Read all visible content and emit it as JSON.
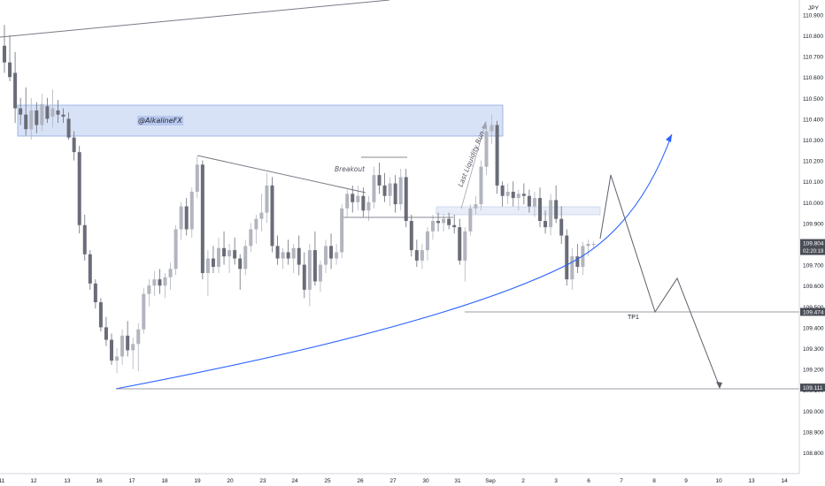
{
  "chart_data": {
    "type": "candlestick",
    "currency": "JPY",
    "y_ticks": [
      "110.900",
      "110.800",
      "110.700",
      "110.600",
      "110.500",
      "110.400",
      "110.300",
      "110.200",
      "110.100",
      "110.000",
      "109.900",
      "109.800",
      "109.700",
      "109.600",
      "109.500",
      "109.400",
      "109.300",
      "109.200",
      "109.100",
      "109.000",
      "108.900",
      "108.800"
    ],
    "x_ticks": [
      "11",
      "12",
      "13",
      "16",
      "17",
      "18",
      "19",
      "20",
      "23",
      "24",
      "25",
      "26",
      "27",
      "30",
      "31",
      "Sep",
      "2",
      "3",
      "6",
      "7",
      "8",
      "9",
      "10",
      "13",
      "14"
    ],
    "ylim": [
      108.75,
      110.95
    ],
    "price_tags": [
      {
        "label": "109.804",
        "sub": "02:20:19",
        "value": 109.804,
        "color": "#4a4d57"
      },
      {
        "label": "109.474",
        "value": 109.474,
        "color": "#4a4d57"
      },
      {
        "label": "109.111",
        "value": 109.111,
        "color": "#4a4d57"
      }
    ],
    "annotations": {
      "watermark": "@AlkalineFX",
      "breakout": "Breakout",
      "liquidity": "Last Liquidity Run",
      "tp1": "TP1"
    },
    "candles": [
      [
        110.75,
        110.85,
        110.62,
        110.67
      ],
      [
        110.67,
        110.8,
        110.58,
        110.6
      ],
      [
        110.62,
        110.72,
        110.38,
        110.45
      ],
      [
        110.45,
        110.5,
        110.37,
        110.42
      ],
      [
        110.42,
        110.55,
        110.32,
        110.35
      ],
      [
        110.35,
        110.5,
        110.3,
        110.44
      ],
      [
        110.44,
        110.48,
        110.33,
        110.37
      ],
      [
        110.37,
        110.52,
        110.34,
        110.47
      ],
      [
        110.46,
        110.5,
        110.38,
        110.4
      ],
      [
        110.41,
        110.54,
        110.36,
        110.45
      ],
      [
        110.44,
        110.49,
        110.38,
        110.42
      ],
      [
        110.42,
        110.45,
        110.38,
        110.41
      ],
      [
        110.4,
        110.43,
        110.3,
        110.31
      ],
      [
        110.31,
        110.34,
        110.2,
        110.24
      ],
      [
        110.24,
        110.27,
        109.85,
        109.89
      ],
      [
        109.89,
        109.94,
        109.72,
        109.75
      ],
      [
        109.75,
        109.77,
        109.58,
        109.61
      ],
      [
        109.61,
        109.63,
        109.49,
        109.52
      ],
      [
        109.52,
        109.54,
        109.38,
        109.4
      ],
      [
        109.4,
        109.45,
        109.31,
        109.34
      ],
      [
        109.34,
        109.37,
        109.22,
        109.24
      ],
      [
        109.24,
        109.3,
        109.18,
        109.26
      ],
      [
        109.26,
        109.39,
        109.22,
        109.36
      ],
      [
        109.36,
        109.43,
        109.26,
        109.29
      ],
      [
        109.29,
        109.35,
        109.2,
        109.32
      ],
      [
        109.32,
        109.42,
        109.19,
        109.39
      ],
      [
        109.39,
        109.59,
        109.37,
        109.56
      ],
      [
        109.56,
        109.63,
        109.5,
        109.6
      ],
      [
        109.6,
        109.67,
        109.55,
        109.63
      ],
      [
        109.63,
        109.68,
        109.56,
        109.6
      ],
      [
        109.6,
        109.66,
        109.54,
        109.64
      ],
      [
        109.64,
        109.71,
        109.58,
        109.68
      ],
      [
        109.68,
        109.89,
        109.65,
        109.87
      ],
      [
        109.87,
        110.0,
        109.82,
        109.98
      ],
      [
        109.98,
        110.02,
        109.84,
        109.87
      ],
      [
        109.87,
        110.07,
        109.83,
        110.05
      ],
      [
        110.05,
        110.22,
        110.02,
        110.18
      ],
      [
        110.18,
        110.2,
        109.63,
        109.66
      ],
      [
        109.66,
        109.77,
        109.55,
        109.73
      ],
      [
        109.73,
        109.79,
        109.66,
        109.69
      ],
      [
        109.69,
        109.83,
        109.66,
        109.78
      ],
      [
        109.78,
        109.86,
        109.7,
        109.74
      ],
      [
        109.74,
        109.8,
        109.66,
        109.77
      ],
      [
        109.77,
        109.83,
        109.7,
        109.73
      ],
      [
        109.73,
        109.75,
        109.58,
        109.68
      ],
      [
        109.68,
        109.82,
        109.65,
        109.79
      ],
      [
        109.79,
        109.9,
        109.76,
        109.87
      ],
      [
        109.87,
        109.94,
        109.8,
        109.92
      ],
      [
        109.92,
        110.04,
        109.86,
        109.95
      ],
      [
        109.95,
        110.14,
        109.9,
        110.08
      ],
      [
        110.08,
        110.12,
        109.76,
        109.79
      ],
      [
        109.79,
        109.84,
        109.7,
        109.73
      ],
      [
        109.73,
        109.78,
        109.68,
        109.76
      ],
      [
        109.76,
        109.82,
        109.7,
        109.73
      ],
      [
        109.73,
        109.8,
        109.66,
        109.78
      ],
      [
        109.78,
        109.84,
        109.65,
        109.7
      ],
      [
        109.7,
        109.76,
        109.54,
        109.58
      ],
      [
        109.58,
        109.8,
        109.5,
        109.77
      ],
      [
        109.77,
        109.86,
        109.6,
        109.62
      ],
      [
        109.62,
        109.72,
        109.57,
        109.7
      ],
      [
        109.7,
        109.82,
        109.66,
        109.79
      ],
      [
        109.79,
        109.85,
        109.68,
        109.73
      ],
      [
        109.73,
        109.8,
        109.7,
        109.76
      ],
      [
        109.76,
        109.99,
        109.73,
        109.97
      ],
      [
        109.97,
        110.06,
        109.93,
        110.04
      ],
      [
        110.04,
        110.08,
        109.95,
        110.0
      ],
      [
        110.0,
        110.08,
        109.96,
        110.03
      ],
      [
        110.03,
        110.07,
        109.93,
        109.96
      ],
      [
        109.96,
        110.03,
        109.91,
        110.0
      ],
      [
        110.0,
        110.17,
        109.97,
        110.13
      ],
      [
        110.13,
        110.19,
        110.04,
        110.08
      ],
      [
        110.08,
        110.14,
        110.0,
        110.03
      ],
      [
        110.03,
        110.12,
        109.98,
        110.09
      ],
      [
        110.09,
        110.13,
        109.95,
        109.99
      ],
      [
        109.99,
        110.16,
        109.96,
        110.12
      ],
      [
        110.12,
        110.16,
        109.88,
        109.91
      ],
      [
        109.91,
        109.94,
        109.74,
        109.77
      ],
      [
        109.77,
        109.82,
        109.69,
        109.72
      ],
      [
        109.72,
        109.8,
        109.68,
        109.77
      ],
      [
        109.77,
        109.88,
        109.72,
        109.86
      ],
      [
        109.86,
        109.94,
        109.82,
        109.91
      ],
      [
        109.91,
        109.95,
        109.86,
        109.9
      ],
      [
        109.9,
        109.94,
        109.86,
        109.92
      ],
      [
        109.92,
        109.95,
        109.87,
        109.89
      ],
      [
        109.89,
        109.94,
        109.85,
        109.88
      ],
      [
        109.88,
        109.92,
        109.7,
        109.72
      ],
      [
        109.72,
        109.88,
        109.62,
        109.86
      ],
      [
        109.86,
        109.99,
        109.84,
        109.97
      ],
      [
        109.97,
        110.03,
        109.94,
        109.99
      ],
      [
        109.99,
        110.2,
        109.96,
        110.17
      ],
      [
        110.17,
        110.37,
        110.13,
        110.34
      ],
      [
        110.34,
        110.42,
        110.28,
        110.37
      ],
      [
        110.37,
        110.39,
        110.04,
        110.08
      ],
      [
        110.08,
        110.1,
        109.98,
        110.03
      ],
      [
        110.03,
        110.09,
        109.99,
        110.05
      ],
      [
        110.05,
        110.1,
        109.98,
        110.02
      ],
      [
        110.02,
        110.06,
        109.96,
        110.04
      ],
      [
        110.04,
        110.09,
        109.99,
        110.03
      ],
      [
        110.03,
        110.06,
        109.95,
        109.98
      ],
      [
        109.98,
        110.05,
        109.93,
        110.02
      ],
      [
        110.02,
        110.07,
        109.88,
        109.91
      ],
      [
        109.91,
        109.96,
        109.85,
        109.88
      ],
      [
        109.88,
        110.04,
        109.84,
        110.01
      ],
      [
        110.01,
        110.08,
        109.9,
        109.92
      ],
      [
        109.92,
        109.98,
        109.8,
        109.84
      ],
      [
        109.84,
        109.87,
        109.6,
        109.63
      ],
      [
        109.63,
        109.78,
        109.58,
        109.74
      ],
      [
        109.74,
        109.8,
        109.66,
        109.69
      ],
      [
        109.69,
        109.81,
        109.65,
        109.79
      ],
      [
        109.79,
        109.82,
        109.74,
        109.8
      ],
      [
        109.8,
        109.81,
        109.78,
        109.8
      ]
    ]
  }
}
